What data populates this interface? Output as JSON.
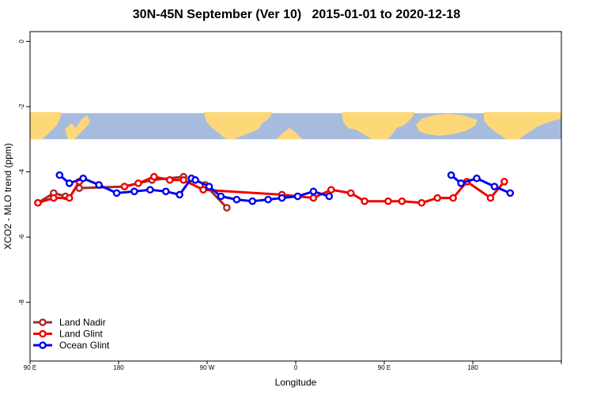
{
  "chart_data": {
    "type": "line",
    "title": "30N-45N September (Ver 10)   2015-01-01 to 2020-12-18",
    "xlabel": "Longitude",
    "ylabel": "XCO2 - MLO trend (ppm)",
    "xlim": [
      -90,
      180
    ],
    "ylim": [
      -9.8,
      0.3
    ],
    "x_ticks": [
      {
        "value": -90,
        "label": "90 E"
      },
      {
        "value": -45,
        "label": "180"
      },
      {
        "value": 0,
        "label": "90 W"
      },
      {
        "value": 45,
        "label": "0"
      },
      {
        "value": 90,
        "label": "90 E"
      },
      {
        "value": 135,
        "label": "180"
      }
    ],
    "y_ticks": [
      0,
      -2,
      -4,
      -6,
      -8
    ],
    "map_band": {
      "y_top": -2.2,
      "y_bottom": -3.0,
      "ocean_color": "#a7bcdd",
      "land_color": "#fdd879"
    },
    "legend_position": "bottom-left",
    "grid": false,
    "series": [
      {
        "name": "Land Nadir",
        "color": "#a52a2a",
        "x": [
          -86,
          -78,
          -72,
          -65,
          -42,
          -28,
          -12,
          -1,
          10
        ],
        "y": [
          -4.95,
          -4.65,
          -4.75,
          -4.5,
          -4.45,
          -4.25,
          -4.15,
          -4.4,
          -5.1
        ],
        "breaks": [
          3,
          7
        ]
      },
      {
        "name": "Land Glint",
        "color": "#ee0000",
        "x": [
          -86,
          -78,
          -70,
          -65,
          -42,
          -35,
          -27,
          -19,
          -12,
          -2,
          38,
          46,
          54,
          63,
          73,
          80,
          92,
          99,
          109,
          117,
          125,
          132,
          144,
          151
        ],
        "y": [
          -4.95,
          -4.8,
          -4.8,
          -4.3,
          -4.45,
          -4.35,
          -4.15,
          -4.25,
          -4.25,
          -4.55,
          -4.7,
          -4.75,
          -4.8,
          -4.55,
          -4.65,
          -4.9,
          -4.9,
          -4.9,
          -4.95,
          -4.8,
          -4.8,
          -4.3,
          -4.8,
          -4.3
        ],
        "breaks": [
          4
        ]
      },
      {
        "name": "Ocean Glint",
        "color": "#0000ee",
        "x": [
          -75,
          -70,
          -63,
          -55,
          -46,
          -37,
          -29,
          -21,
          -14,
          -8,
          -6,
          1,
          7,
          15,
          23,
          31,
          38,
          46,
          54,
          62,
          124,
          129,
          137,
          146,
          154
        ],
        "y": [
          -4.1,
          -4.35,
          -4.2,
          -4.4,
          -4.65,
          -4.6,
          -4.55,
          -4.6,
          -4.7,
          -4.2,
          -4.25,
          -4.45,
          -4.75,
          -4.85,
          -4.9,
          -4.85,
          -4.8,
          -4.75,
          -4.6,
          -4.75,
          -4.1,
          -4.35,
          -4.2,
          -4.45,
          -4.65
        ],
        "breaks": [
          20
        ]
      }
    ]
  }
}
